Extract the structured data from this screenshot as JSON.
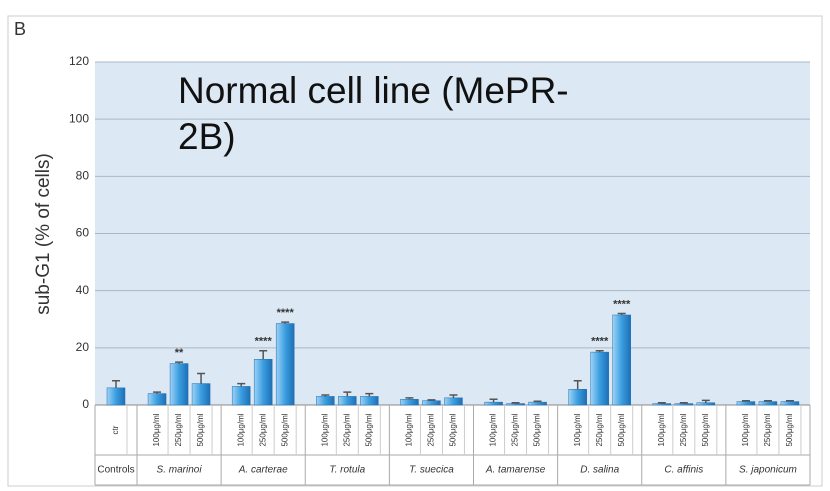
{
  "chart_data": {
    "type": "bar",
    "panel": "B",
    "title": "Normal cell line (MePR-2B)",
    "y_label": "sub-G1 (% of cells)",
    "color": "#3a9ee0",
    "ylim": [
      0,
      120
    ],
    "yticks": [
      0,
      20,
      40,
      60,
      80,
      100,
      120
    ],
    "grid": true,
    "groups": [
      {
        "name": "Controls",
        "categories": [
          "ctr"
        ],
        "values": [
          6
        ],
        "errors": [
          2.5
        ],
        "significance": [
          null
        ]
      },
      {
        "name": "S. marinoi",
        "categories": [
          "100µg/ml",
          "250µg/ml",
          "500µg/ml"
        ],
        "values": [
          4,
          14.5,
          7.5
        ],
        "errors": [
          0.5,
          0.5,
          3.5
        ],
        "significance": [
          null,
          "**",
          null
        ]
      },
      {
        "name": "A. carterae",
        "categories": [
          "100µg/ml",
          "250µg/ml",
          "500µg/ml"
        ],
        "values": [
          6.5,
          16,
          28.5
        ],
        "errors": [
          1,
          3,
          0.5
        ],
        "significance": [
          null,
          "****",
          "****"
        ]
      },
      {
        "name": "T. rotula",
        "categories": [
          "100µg/ml",
          "250µg/ml",
          "500µg/ml"
        ],
        "values": [
          3,
          3,
          3
        ],
        "errors": [
          0.5,
          1.5,
          1
        ],
        "significance": [
          null,
          null,
          null
        ]
      },
      {
        "name": "T. suecica",
        "categories": [
          "100µg/ml",
          "250µg/ml",
          "500µg/ml"
        ],
        "values": [
          2,
          1.5,
          2.5
        ],
        "errors": [
          0.5,
          0.3,
          1
        ],
        "significance": [
          null,
          null,
          null
        ]
      },
      {
        "name": "A. tamarense",
        "categories": [
          "100µg/ml",
          "250µg/ml",
          "500µg/ml"
        ],
        "values": [
          1,
          0.5,
          1
        ],
        "errors": [
          1,
          0.3,
          0.3
        ],
        "significance": [
          null,
          null,
          null
        ]
      },
      {
        "name": "D. salina",
        "categories": [
          "100µg/ml",
          "250µg/ml",
          "500µg/ml"
        ],
        "values": [
          5.5,
          18.5,
          31.5
        ],
        "errors": [
          3,
          0.5,
          0.5
        ],
        "significance": [
          null,
          "****",
          "****"
        ]
      },
      {
        "name": "C. affinis",
        "categories": [
          "100µg/ml",
          "250µg/ml",
          "500µg/ml"
        ],
        "values": [
          0.5,
          0.5,
          0.8
        ],
        "errors": [
          0.3,
          0.3,
          0.8
        ],
        "significance": [
          null,
          null,
          null
        ]
      },
      {
        "name": "S. japonicum",
        "categories": [
          "100µg/ml",
          "250µg/ml",
          "500µg/ml"
        ],
        "values": [
          1.2,
          1.2,
          1.2
        ],
        "errors": [
          0.3,
          0.3,
          0.3
        ],
        "significance": [
          null,
          null,
          null
        ]
      }
    ]
  }
}
